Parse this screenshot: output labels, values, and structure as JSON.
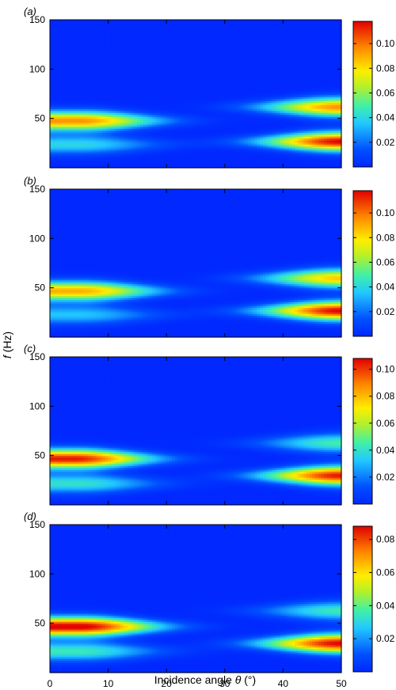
{
  "figure": {
    "ylabel_var": "f",
    "ylabel_unit": " (Hz)",
    "xlabel_text": "Incidence angle ",
    "xlabel_var": "θ",
    "xlabel_unit": " (°)"
  },
  "chart_data": [
    {
      "type": "heatmap",
      "panel_label": "(a)",
      "x_ticks": [
        0,
        10,
        20,
        30,
        40,
        50
      ],
      "y_ticks": [
        50,
        100,
        150
      ],
      "xlim": [
        0,
        50
      ],
      "ylim": [
        0,
        150
      ],
      "colorbar": {
        "range": [
          0,
          0.118
        ],
        "ticks": [
          0.02,
          0.04,
          0.06,
          0.08,
          0.1
        ],
        "tick_labels": [
          "0.02",
          "0.04",
          "0.06",
          "0.08",
          "0.10"
        ]
      },
      "bands": [
        {
          "f": 48,
          "theta_peak": 5,
          "peak": 0.095
        },
        {
          "f": 24,
          "theta_peak": 5,
          "peak": 0.04
        },
        {
          "f": 62,
          "theta_peak": 50,
          "peak": 0.095
        },
        {
          "f": 27,
          "theta_peak": 50,
          "peak": 0.118
        }
      ]
    },
    {
      "type": "heatmap",
      "panel_label": "(b)",
      "x_ticks": [
        0,
        10,
        20,
        30,
        40,
        50
      ],
      "y_ticks": [
        50,
        100,
        150
      ],
      "xlim": [
        0,
        50
      ],
      "ylim": [
        0,
        150
      ],
      "colorbar": {
        "range": [
          0,
          0.118
        ],
        "ticks": [
          0.02,
          0.04,
          0.06,
          0.08,
          0.1
        ],
        "tick_labels": [
          "0.02",
          "0.04",
          "0.06",
          "0.08",
          "0.10"
        ]
      },
      "bands": [
        {
          "f": 47,
          "theta_peak": 5,
          "peak": 0.09
        },
        {
          "f": 23,
          "theta_peak": 5,
          "peak": 0.035
        },
        {
          "f": 60,
          "theta_peak": 50,
          "peak": 0.085
        },
        {
          "f": 27,
          "theta_peak": 50,
          "peak": 0.118
        }
      ]
    },
    {
      "type": "heatmap",
      "panel_label": "(c)",
      "x_ticks": [
        0,
        10,
        20,
        30,
        40,
        50
      ],
      "y_ticks": [
        50,
        100,
        150
      ],
      "xlim": [
        0,
        50
      ],
      "ylim": [
        0,
        150
      ],
      "colorbar": {
        "range": [
          0,
          0.108
        ],
        "ticks": [
          0.02,
          0.04,
          0.06,
          0.08,
          0.1
        ],
        "tick_labels": [
          "0.02",
          "0.04",
          "0.06",
          "0.08",
          "0.10"
        ]
      },
      "bands": [
        {
          "f": 47,
          "theta_peak": 4,
          "peak": 0.105
        },
        {
          "f": 22,
          "theta_peak": 5,
          "peak": 0.04
        },
        {
          "f": 63,
          "theta_peak": 50,
          "peak": 0.045
        },
        {
          "f": 30,
          "theta_peak": 50,
          "peak": 0.105
        }
      ]
    },
    {
      "type": "heatmap",
      "panel_label": "(d)",
      "x_ticks": [
        0,
        10,
        20,
        30,
        40,
        50
      ],
      "y_ticks": [
        50,
        100,
        150
      ],
      "xlim": [
        0,
        50
      ],
      "ylim": [
        0,
        150
      ],
      "colorbar": {
        "range": [
          0,
          0.088
        ],
        "ticks": [
          0.02,
          0.04,
          0.06,
          0.08
        ],
        "tick_labels": [
          "0.02",
          "0.04",
          "0.06",
          "0.08"
        ]
      },
      "bands": [
        {
          "f": 47,
          "theta_peak": 5,
          "peak": 0.09
        },
        {
          "f": 22,
          "theta_peak": 5,
          "peak": 0.035
        },
        {
          "f": 63,
          "theta_peak": 50,
          "peak": 0.035
        },
        {
          "f": 30,
          "theta_peak": 50,
          "peak": 0.088
        }
      ]
    }
  ]
}
